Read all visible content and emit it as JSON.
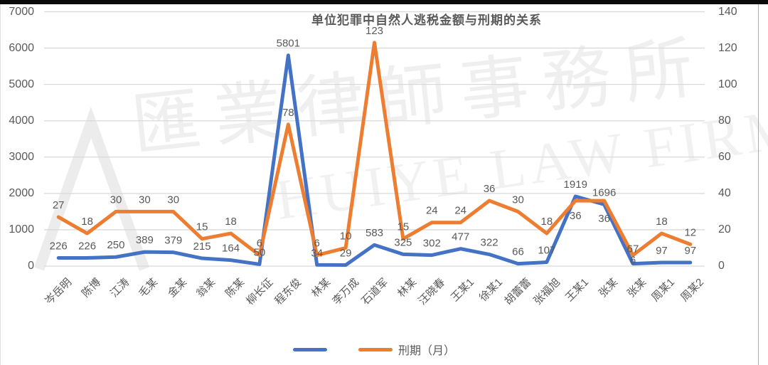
{
  "title": "单位犯罪中自然人逃税金额与刑期的关系",
  "watermark": {
    "cjk": "匯業律師事務所",
    "latin": "HUIYE LAW FIRM",
    "logo": "triangle-mountain-mark"
  },
  "legend": [
    {
      "label": "",
      "color": "#4472C4"
    },
    {
      "label": "刑期（月）",
      "color": "#ED7D31"
    }
  ],
  "chart_data": {
    "type": "line",
    "title": "单位犯罪中自然人逃税金额与刑期的关系",
    "categories": [
      "岑岳明",
      "陈博",
      "江涛",
      "毛某",
      "金某",
      "翁某",
      "陈某",
      "柳长征",
      "程东俊",
      "林某",
      "李万成",
      "石道军",
      "林某",
      "汪晓春",
      "王某1",
      "徐某1",
      "胡蕾蕾",
      "张福旭",
      "王某1",
      "张某",
      "张某",
      "周某1",
      "周某2"
    ],
    "series": [
      {
        "name": "",
        "axis": "left",
        "color": "#4472C4",
        "values": [
          226,
          226,
          250,
          389,
          379,
          215,
          164,
          50,
          5801,
          34,
          29,
          583,
          325,
          302,
          477,
          322,
          66,
          107,
          1919,
          1696,
          67,
          97,
          97
        ]
      },
      {
        "name": "刑期（月）",
        "axis": "right",
        "color": "#ED7D31",
        "values": [
          27,
          18,
          30,
          30,
          30,
          15,
          18,
          6,
          78,
          6,
          10,
          123,
          15,
          24,
          24,
          36,
          30,
          18,
          36,
          36,
          6,
          18,
          12
        ]
      }
    ],
    "left_axis": {
      "min": 0,
      "max": 7000,
      "ticks": [
        7000,
        6000,
        5000,
        4000,
        3000,
        2000,
        1000,
        0
      ]
    },
    "right_axis": {
      "min": 0,
      "max": 140,
      "ticks": [
        140,
        120,
        100,
        80,
        60,
        40,
        20,
        0
      ]
    },
    "grid": true,
    "data_labels": true,
    "legend_position": "bottom",
    "colors": {
      "grid": "#D9D9D9",
      "text": "#595959"
    }
  }
}
